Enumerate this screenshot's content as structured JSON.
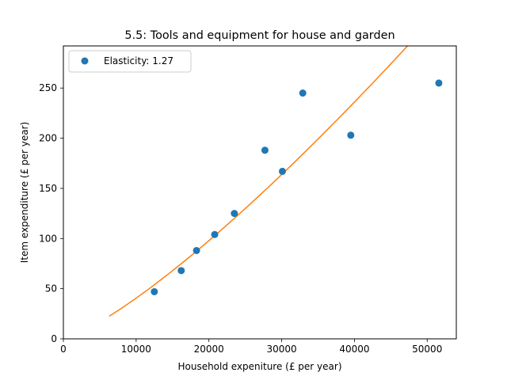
{
  "chart_data": {
    "type": "scatter",
    "title": "5.5: Tools and equipment for house and garden",
    "xlabel": "Household expeniture (£ per year)",
    "ylabel": "Item expenditure (£ per year)",
    "xlim": [
      0,
      54000
    ],
    "ylim": [
      0,
      292
    ],
    "xticks": [
      0,
      10000,
      20000,
      30000,
      40000,
      50000
    ],
    "yticks": [
      0,
      50,
      100,
      150,
      200,
      250
    ],
    "grid": false,
    "legend_position": "top-left",
    "series": [
      {
        "name": "Elasticity: 1.27",
        "kind": "points",
        "color": "#1f77b4",
        "x": [
          12500,
          16200,
          18300,
          20800,
          23500,
          27700,
          30100,
          32900,
          39500,
          51600
        ],
        "y": [
          47,
          68,
          88,
          104,
          125,
          188,
          167,
          245,
          203,
          255
        ]
      },
      {
        "kind": "fit-line",
        "color": "#ff7f0e",
        "elasticity": 1.27,
        "x_start": 6300,
        "x_end": 47500,
        "anchor": {
          "x": 27700,
          "y": 148
        }
      }
    ]
  }
}
